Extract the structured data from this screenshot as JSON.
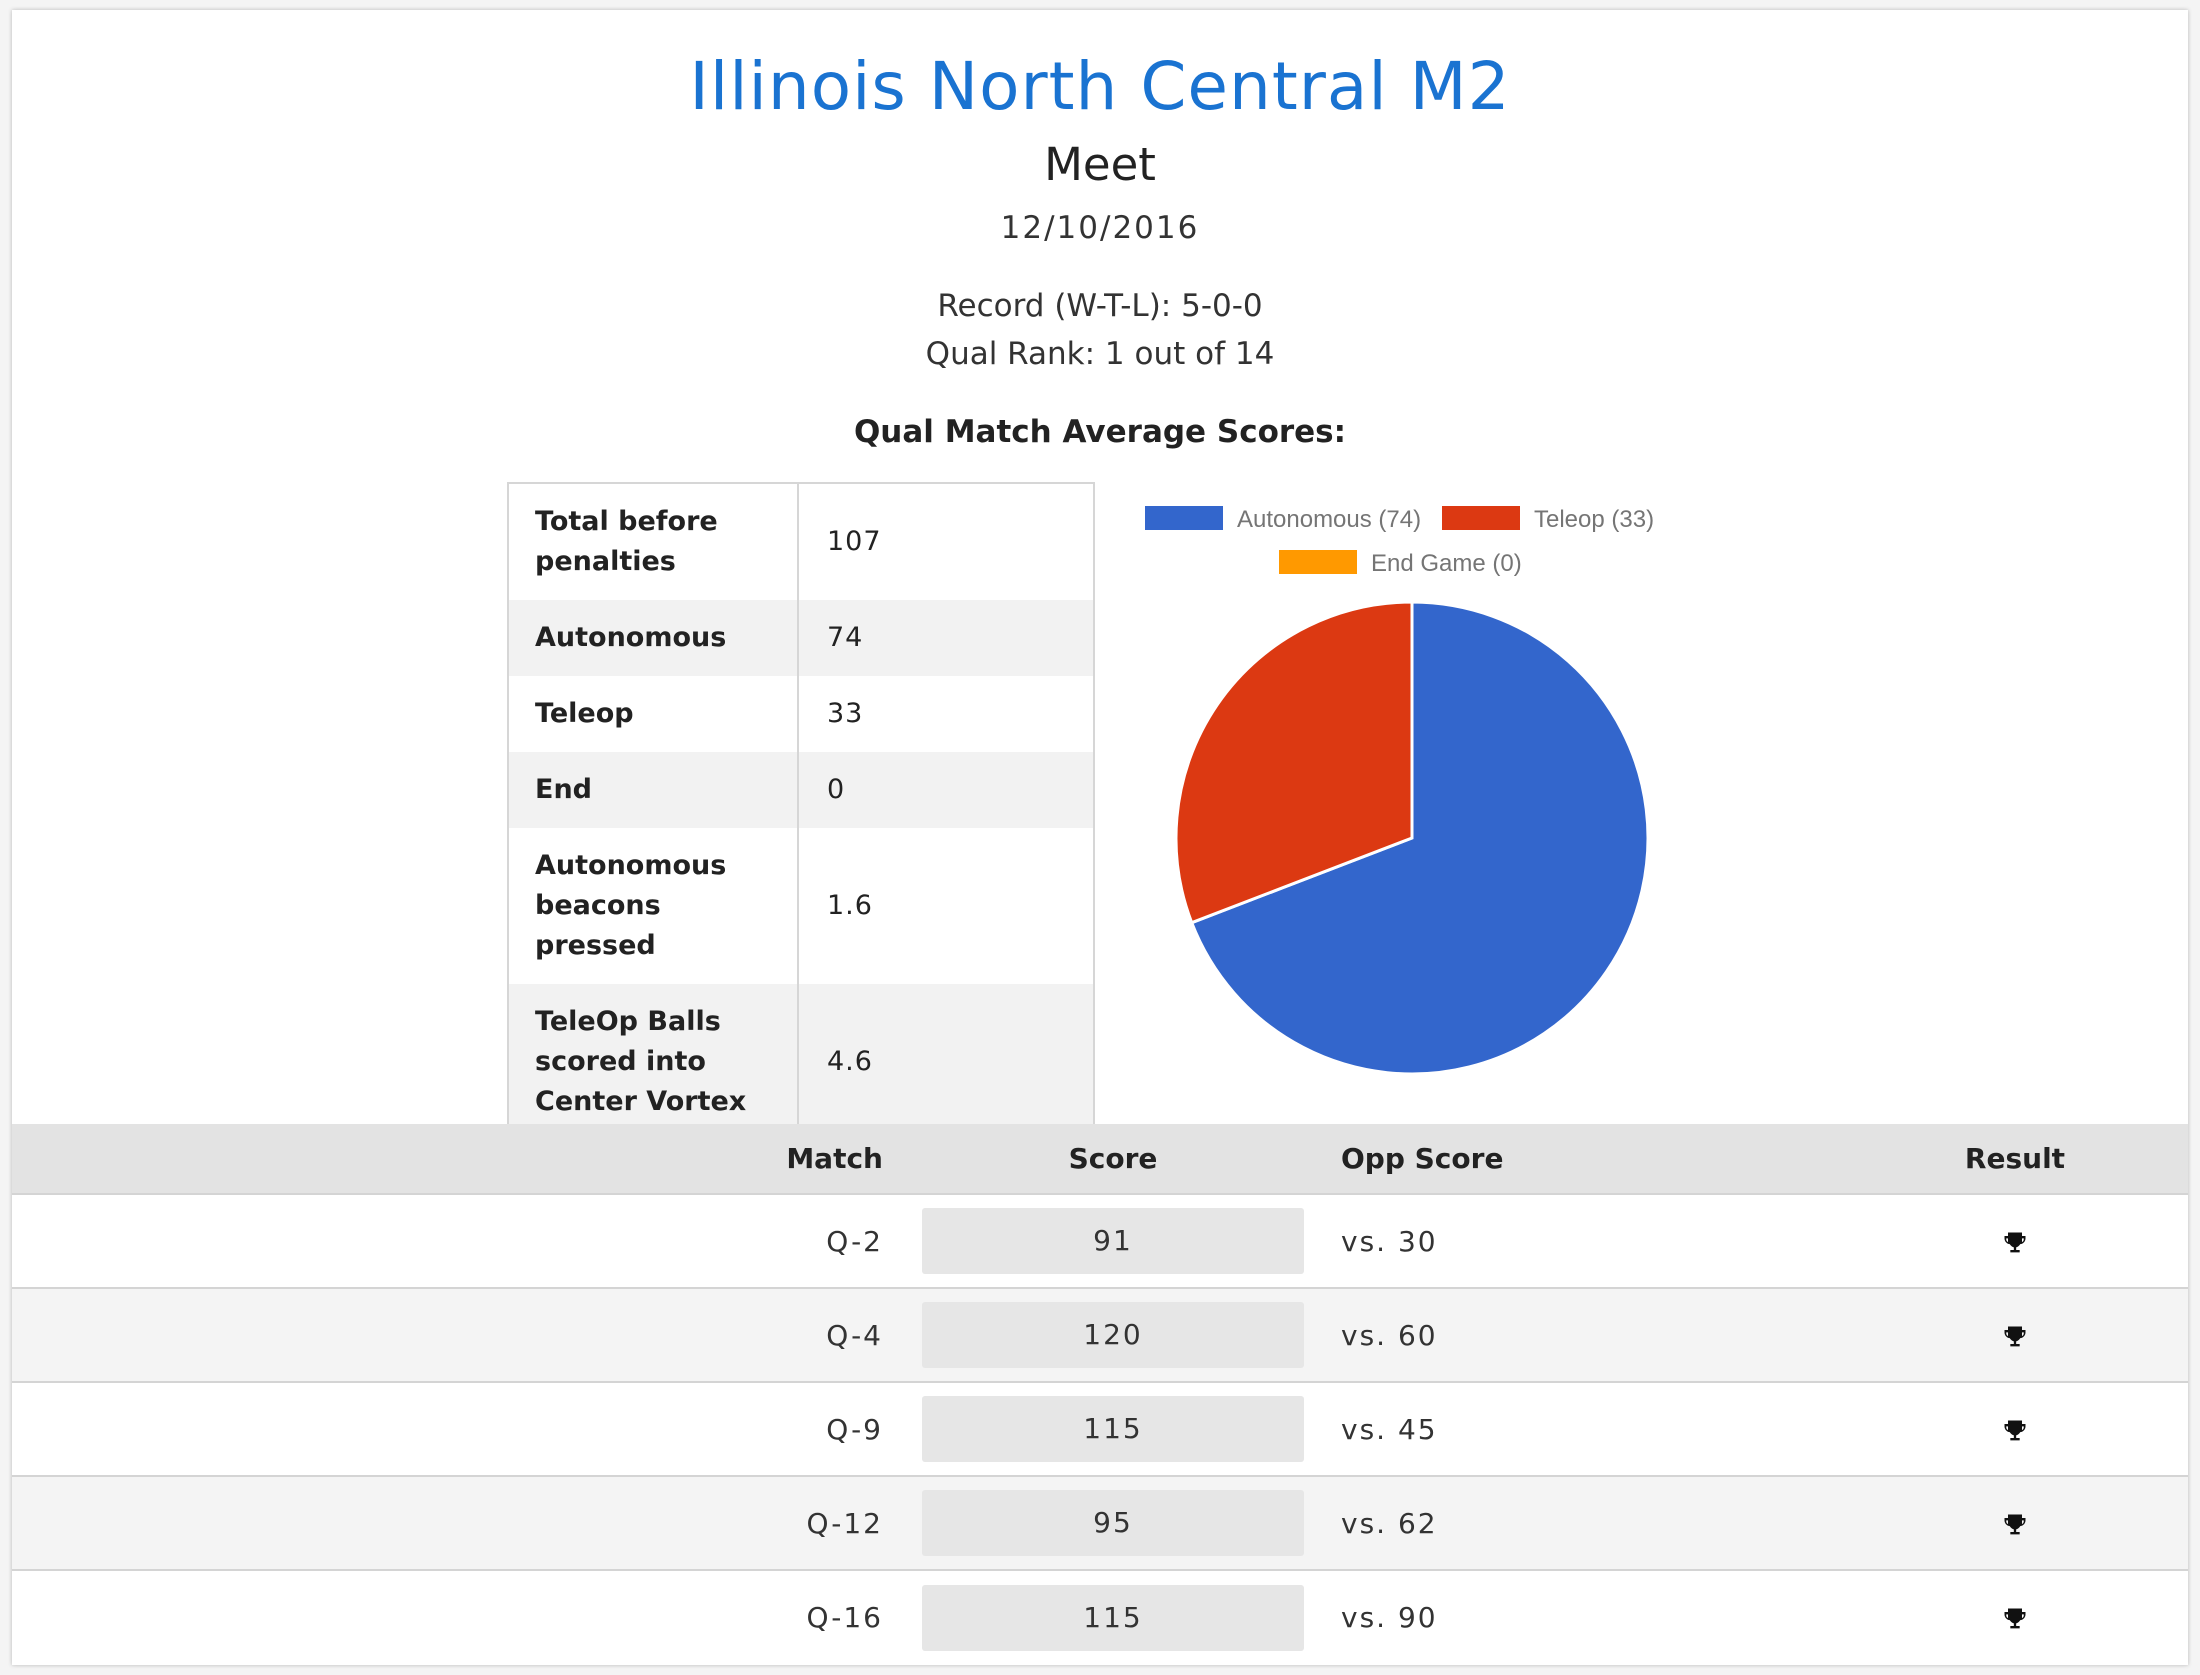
{
  "header": {
    "title": "Illinois North Central M2",
    "subtitle": "Meet",
    "date": "12/10/2016",
    "record": "Record (W-T-L): 5-0-0",
    "rank": "Qual Rank: 1 out of 14",
    "avg_heading": "Qual Match Average Scores:"
  },
  "stats": [
    {
      "label": "Total before penalties",
      "value": "107"
    },
    {
      "label": "Autonomous",
      "value": "74"
    },
    {
      "label": "Teleop",
      "value": "33"
    },
    {
      "label": "End",
      "value": "0"
    },
    {
      "label": "Autonomous beacons pressed",
      "value": "1.6"
    },
    {
      "label": "TeleOp Balls scored into Center Vortex",
      "value": "4.6"
    }
  ],
  "chart_data": {
    "type": "pie",
    "slices": [
      {
        "label": "Autonomous (74)",
        "value": 74,
        "color": "#3366cc"
      },
      {
        "label": "Teleop (33)",
        "value": 33,
        "color": "#dc3912"
      },
      {
        "label": "End Game (0)",
        "value": 0,
        "color": "#ff9900"
      }
    ],
    "legend_position": "top"
  },
  "matches_table": {
    "headers": {
      "match": "Match",
      "score": "Score",
      "opp": "Opp Score",
      "result": "Result"
    },
    "rows": [
      {
        "match": "Q-2",
        "score": "91",
        "opp": "vs. 30",
        "result_icon": "trophy-icon"
      },
      {
        "match": "Q-4",
        "score": "120",
        "opp": "vs. 60",
        "result_icon": "trophy-icon"
      },
      {
        "match": "Q-9",
        "score": "115",
        "opp": "vs. 45",
        "result_icon": "trophy-icon"
      },
      {
        "match": "Q-12",
        "score": "95",
        "opp": "vs. 62",
        "result_icon": "trophy-icon"
      },
      {
        "match": "Q-16",
        "score": "115",
        "opp": "vs. 90",
        "result_icon": "trophy-icon"
      }
    ]
  }
}
